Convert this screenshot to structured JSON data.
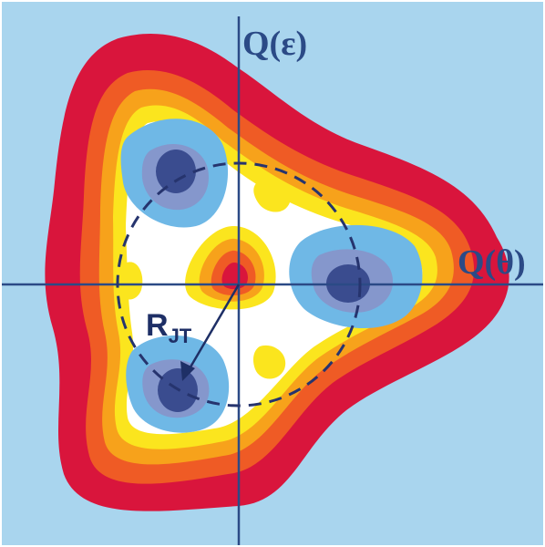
{
  "diagram": {
    "axes": {
      "vertical_label": "Q(ε)",
      "horizontal_label": "Q(θ)"
    },
    "radius_label": {
      "main": "R",
      "subscript": "JT"
    },
    "colors": {
      "background": "#a9d5ee",
      "outer_red": "#d9153c",
      "orange": "#ef5b25",
      "amber": "#f7a21b",
      "yellow": "#fbe51e",
      "white": "#ffffff",
      "light_blue": "#6fb8e6",
      "mid_blue": "#8597cc",
      "dark_blue": "#3a4c8f",
      "axis": "#2b4a86",
      "dashed_circle": "#26346e"
    },
    "minima_count": 3,
    "icon_names": [
      "arrow-icon"
    ]
  }
}
